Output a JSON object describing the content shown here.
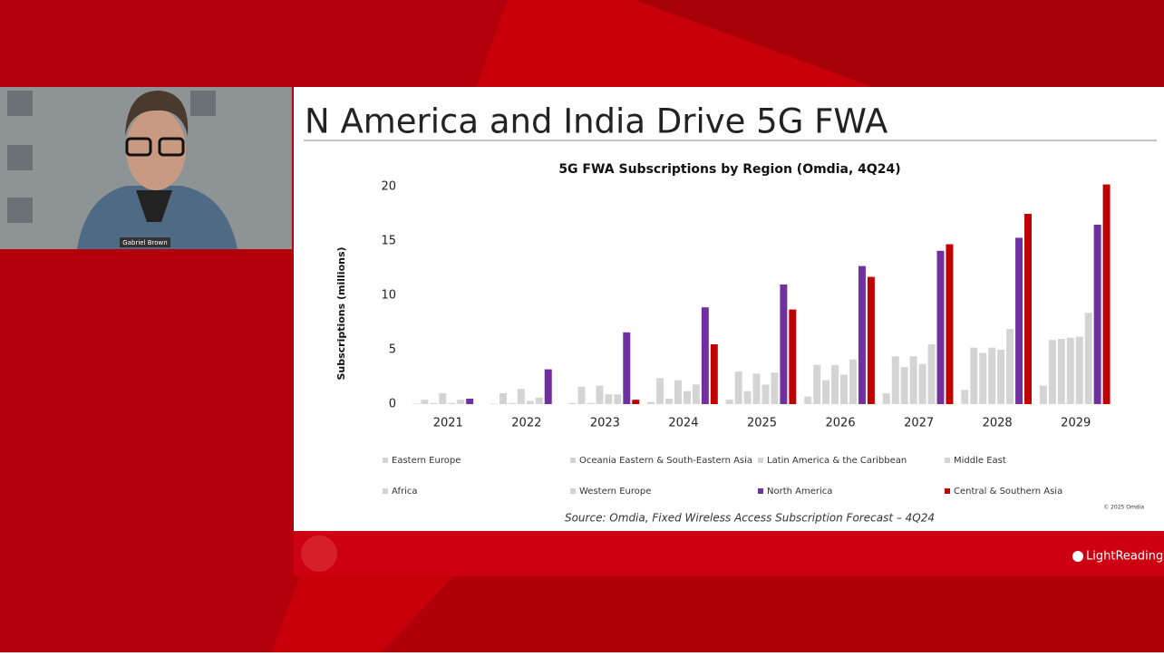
{
  "slide_title": "N America and India Drive 5G FWA",
  "speaker_name": "Gabriel Brown",
  "source": "Source: Omdia, Fixed Wireless Access Subscription Forecast – 4Q24",
  "copyright": "© 2025 Omdia",
  "footer_logo": "LightReading",
  "chart_data": {
    "type": "bar",
    "title": "5G FWA Subscriptions by Region (Omdia, 4Q24)",
    "y_label": "Subscriptions (millions)",
    "categories": [
      "2021",
      "2022",
      "2023",
      "2024",
      "2025",
      "2026",
      "2027",
      "2028",
      "2029"
    ],
    "ylim": [
      0,
      20
    ],
    "yticks": [
      0,
      5,
      10,
      15,
      20
    ],
    "grid": false,
    "series": [
      {
        "name": "Eastern Europe",
        "color": "#d4d4d4",
        "values": [
          0.05,
          0.05,
          0.1,
          0.2,
          0.4,
          0.7,
          1.0,
          1.3,
          1.7
        ]
      },
      {
        "name": "Oceania Eastern & South-Eastern Asia",
        "color": "#d4d4d4",
        "values": [
          0.4,
          1.0,
          1.6,
          2.4,
          3.0,
          3.6,
          4.4,
          5.2,
          5.9
        ]
      },
      {
        "name": "Latin America & the Caribbean",
        "color": "#d4d4d4",
        "values": [
          0.1,
          0.1,
          0.1,
          0.5,
          1.2,
          2.2,
          3.4,
          4.7,
          6.0
        ]
      },
      {
        "name": "Middle East",
        "color": "#d4d4d4",
        "values": [
          1.0,
          1.4,
          1.7,
          2.2,
          2.8,
          3.6,
          4.4,
          5.2,
          6.1
        ]
      },
      {
        "name": "Africa",
        "color": "#d4d4d4",
        "values": [
          0.1,
          0.3,
          0.9,
          1.2,
          1.8,
          2.7,
          3.7,
          5.0,
          6.2
        ]
      },
      {
        "name": "Western Europe",
        "color": "#d4d4d4",
        "values": [
          0.4,
          0.6,
          0.9,
          1.8,
          2.9,
          4.1,
          5.5,
          6.9,
          8.4
        ]
      },
      {
        "name": "North America",
        "color": "#7030a0",
        "values": [
          0.5,
          3.2,
          6.6,
          8.9,
          11.0,
          12.7,
          14.1,
          15.3,
          16.5
        ]
      },
      {
        "name": "Central & Southern Asia",
        "color": "#c00000",
        "values": [
          0,
          0,
          0.4,
          5.5,
          8.7,
          11.7,
          14.7,
          17.5,
          20.2
        ]
      }
    ]
  }
}
